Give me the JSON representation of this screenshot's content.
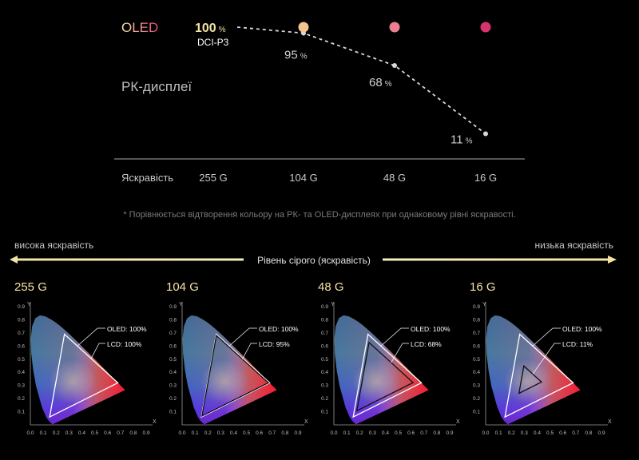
{
  "top_chart": {
    "oled_label": "OLED",
    "lcd_label": "РК-дисплеї",
    "oled_value": "100",
    "oled_sub": "DCI-P3",
    "unit": "%",
    "xaxis_title": "Яскравість",
    "footnote": "* Порівнюється відтворення кольору на РК- та OLED-дисплеях при однаковому рівні яскравості."
  },
  "gray_scale": {
    "left_label": "висока яскравість",
    "right_label": "низька яскравість",
    "center_label": "Рівень сірого (яскравість)"
  },
  "colors": {
    "oled_start": "#f7e7a6",
    "oled_end": "#d8336f",
    "lcd_line": "#d8d8d8",
    "title_yellow": "#f4e3a2"
  },
  "chart_data": [
    {
      "type": "line",
      "categories": [
        "255 G",
        "104 G",
        "48 G",
        "16 G"
      ],
      "series": [
        {
          "name": "OLED",
          "values": [
            100,
            100,
            100,
            100
          ]
        },
        {
          "name": "РК-дисплеї",
          "values": [
            100,
            95,
            68,
            11
          ]
        }
      ],
      "point_labels": {
        "OLED": [
          "100",
          "",
          "",
          ""
        ],
        "РК-дисплеї": [
          "",
          "95",
          "68",
          "11"
        ]
      },
      "xlabel": "Яскравість",
      "ylabel": "",
      "ylim": [
        0,
        100
      ]
    },
    {
      "type": "scatter",
      "gamuts": [
        {
          "title": "255 G",
          "oled_text": "OLED: 100%",
          "lcd_text": "LCD: 100%",
          "lcd_scale": 1.0
        },
        {
          "title": "104 G",
          "oled_text": "OLED: 100%",
          "lcd_text": "LCD: 95%",
          "lcd_scale": 0.95
        },
        {
          "title": "48 G",
          "oled_text": "OLED: 100%",
          "lcd_text": "LCD: 68%",
          "lcd_scale": 0.68
        },
        {
          "title": "16 G",
          "oled_text": "OLED: 100%",
          "lcd_text": "LCD: 11%",
          "lcd_scale": 0.11
        }
      ],
      "xticks": [
        "0.0",
        "0.1",
        "0.2",
        "0.3",
        "0.4",
        "0.5",
        "0.6",
        "0.7",
        "0.8",
        "0.9"
      ],
      "yticks": [
        "0.1",
        "0.2",
        "0.3",
        "0.4",
        "0.5",
        "0.6",
        "0.7",
        "0.8",
        "0.9"
      ],
      "xlabel": "X",
      "ylabel": "Y",
      "xlim": [
        0,
        0.9
      ],
      "ylim": [
        0,
        0.9
      ],
      "oled_triangle": [
        [
          0.68,
          0.32
        ],
        [
          0.265,
          0.69
        ],
        [
          0.15,
          0.06
        ]
      ],
      "white_point": [
        0.3127,
        0.329
      ]
    }
  ]
}
